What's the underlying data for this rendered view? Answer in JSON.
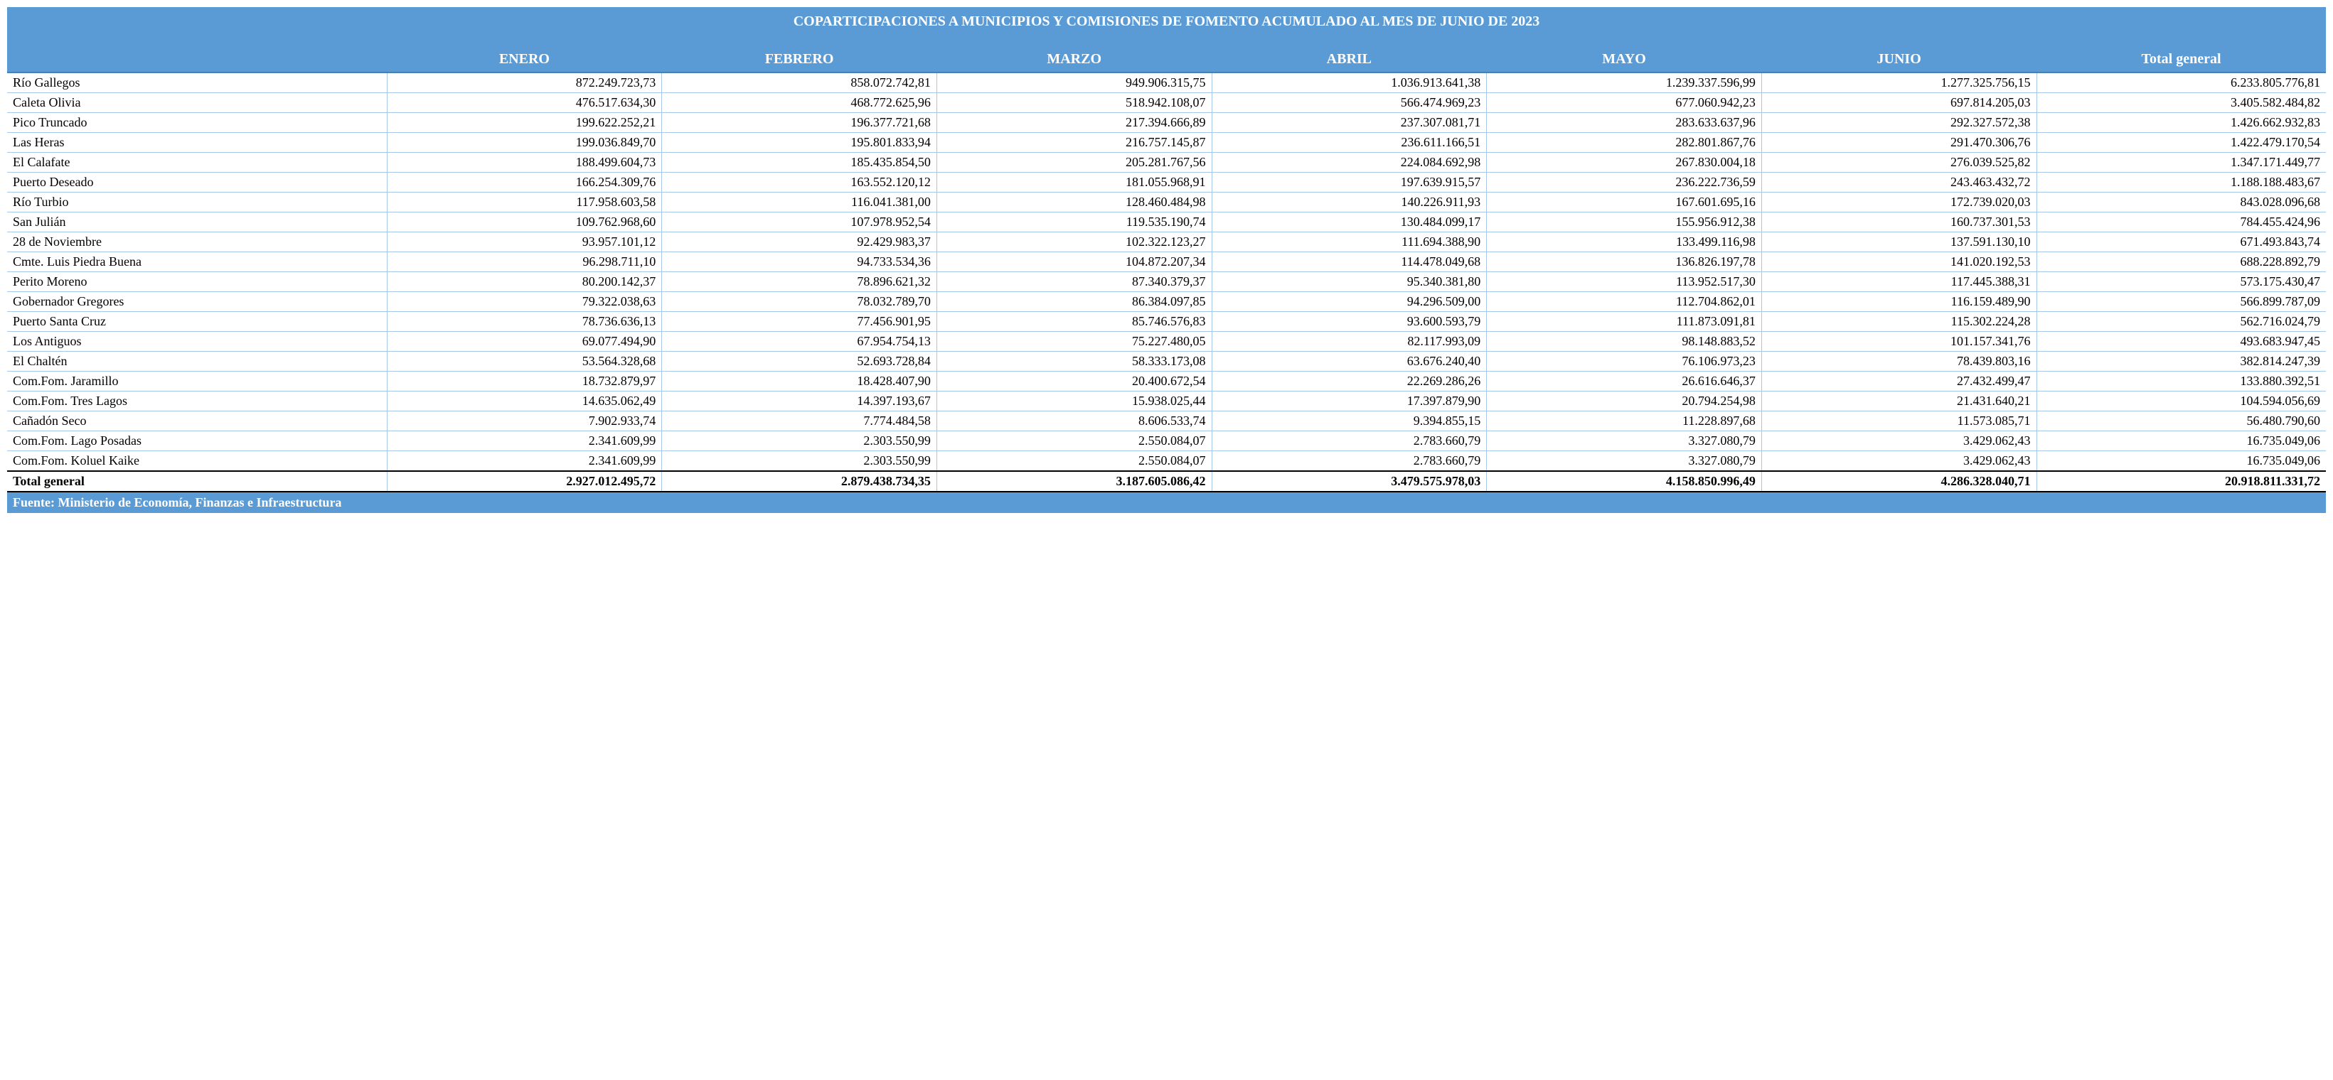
{
  "title": "COPARTICIPACIONES A MUNICIPIOS Y COMISIONES DE FOMENTO ACUMULADO AL MES DE JUNIO DE 2023",
  "columns": [
    "",
    "ENERO",
    "FEBRERO",
    "MARZO",
    "ABRIL",
    "MAYO",
    "JUNIO",
    "Total general"
  ],
  "rows": [
    {
      "name": "Río Gallegos",
      "vals": [
        "872.249.723,73",
        "858.072.742,81",
        "949.906.315,75",
        "1.036.913.641,38",
        "1.239.337.596,99",
        "1.277.325.756,15",
        "6.233.805.776,81"
      ]
    },
    {
      "name": "Caleta Olivia",
      "vals": [
        "476.517.634,30",
        "468.772.625,96",
        "518.942.108,07",
        "566.474.969,23",
        "677.060.942,23",
        "697.814.205,03",
        "3.405.582.484,82"
      ]
    },
    {
      "name": "Pico Truncado",
      "vals": [
        "199.622.252,21",
        "196.377.721,68",
        "217.394.666,89",
        "237.307.081,71",
        "283.633.637,96",
        "292.327.572,38",
        "1.426.662.932,83"
      ]
    },
    {
      "name": "Las Heras",
      "vals": [
        "199.036.849,70",
        "195.801.833,94",
        "216.757.145,87",
        "236.611.166,51",
        "282.801.867,76",
        "291.470.306,76",
        "1.422.479.170,54"
      ]
    },
    {
      "name": "El Calafate",
      "vals": [
        "188.499.604,73",
        "185.435.854,50",
        "205.281.767,56",
        "224.084.692,98",
        "267.830.004,18",
        "276.039.525,82",
        "1.347.171.449,77"
      ]
    },
    {
      "name": "Puerto Deseado",
      "vals": [
        "166.254.309,76",
        "163.552.120,12",
        "181.055.968,91",
        "197.639.915,57",
        "236.222.736,59",
        "243.463.432,72",
        "1.188.188.483,67"
      ]
    },
    {
      "name": "Río Turbio",
      "vals": [
        "117.958.603,58",
        "116.041.381,00",
        "128.460.484,98",
        "140.226.911,93",
        "167.601.695,16",
        "172.739.020,03",
        "843.028.096,68"
      ]
    },
    {
      "name": "San Julián",
      "vals": [
        "109.762.968,60",
        "107.978.952,54",
        "119.535.190,74",
        "130.484.099,17",
        "155.956.912,38",
        "160.737.301,53",
        "784.455.424,96"
      ]
    },
    {
      "name": "28 de Noviembre",
      "vals": [
        "93.957.101,12",
        "92.429.983,37",
        "102.322.123,27",
        "111.694.388,90",
        "133.499.116,98",
        "137.591.130,10",
        "671.493.843,74"
      ]
    },
    {
      "name": "Cmte. Luis Piedra Buena",
      "vals": [
        "96.298.711,10",
        "94.733.534,36",
        "104.872.207,34",
        "114.478.049,68",
        "136.826.197,78",
        "141.020.192,53",
        "688.228.892,79"
      ]
    },
    {
      "name": "Perito Moreno",
      "vals": [
        "80.200.142,37",
        "78.896.621,32",
        "87.340.379,37",
        "95.340.381,80",
        "113.952.517,30",
        "117.445.388,31",
        "573.175.430,47"
      ]
    },
    {
      "name": "Gobernador Gregores",
      "vals": [
        "79.322.038,63",
        "78.032.789,70",
        "86.384.097,85",
        "94.296.509,00",
        "112.704.862,01",
        "116.159.489,90",
        "566.899.787,09"
      ]
    },
    {
      "name": "Puerto Santa Cruz",
      "vals": [
        "78.736.636,13",
        "77.456.901,95",
        "85.746.576,83",
        "93.600.593,79",
        "111.873.091,81",
        "115.302.224,28",
        "562.716.024,79"
      ]
    },
    {
      "name": "Los Antiguos",
      "vals": [
        "69.077.494,90",
        "67.954.754,13",
        "75.227.480,05",
        "82.117.993,09",
        "98.148.883,52",
        "101.157.341,76",
        "493.683.947,45"
      ]
    },
    {
      "name": "El Chaltén",
      "vals": [
        "53.564.328,68",
        "52.693.728,84",
        "58.333.173,08",
        "63.676.240,40",
        "76.106.973,23",
        "78.439.803,16",
        "382.814.247,39"
      ]
    },
    {
      "name": "Com.Fom. Jaramillo",
      "vals": [
        "18.732.879,97",
        "18.428.407,90",
        "20.400.672,54",
        "22.269.286,26",
        "26.616.646,37",
        "27.432.499,47",
        "133.880.392,51"
      ]
    },
    {
      "name": "Com.Fom. Tres Lagos",
      "vals": [
        "14.635.062,49",
        "14.397.193,67",
        "15.938.025,44",
        "17.397.879,90",
        "20.794.254,98",
        "21.431.640,21",
        "104.594.056,69"
      ]
    },
    {
      "name": "Cañadón Seco",
      "vals": [
        "7.902.933,74",
        "7.774.484,58",
        "8.606.533,74",
        "9.394.855,15",
        "11.228.897,68",
        "11.573.085,71",
        "56.480.790,60"
      ]
    },
    {
      "name": "Com.Fom. Lago Posadas",
      "vals": [
        "2.341.609,99",
        "2.303.550,99",
        "2.550.084,07",
        "2.783.660,79",
        "3.327.080,79",
        "3.429.062,43",
        "16.735.049,06"
      ]
    },
    {
      "name": "Com.Fom. Koluel Kaike",
      "vals": [
        "2.341.609,99",
        "2.303.550,99",
        "2.550.084,07",
        "2.783.660,79",
        "3.327.080,79",
        "3.429.062,43",
        "16.735.049,06"
      ]
    }
  ],
  "total": {
    "name": "Total general",
    "vals": [
      "2.927.012.495,72",
      "2.879.438.734,35",
      "3.187.605.086,42",
      "3.479.575.978,03",
      "4.158.850.996,49",
      "4.286.328.040,71",
      "20.918.811.331,72"
    ]
  },
  "source": "Fuente: Ministerio de Economía, Finanzas e Infraestructura",
  "style": {
    "header_bg": "#5b9bd5",
    "header_fg": "#ffffff",
    "row_border": "#a6c8e8",
    "total_border": "#000000",
    "title_fontsize": 20,
    "header_fontsize": 20,
    "body_fontsize": 18
  }
}
